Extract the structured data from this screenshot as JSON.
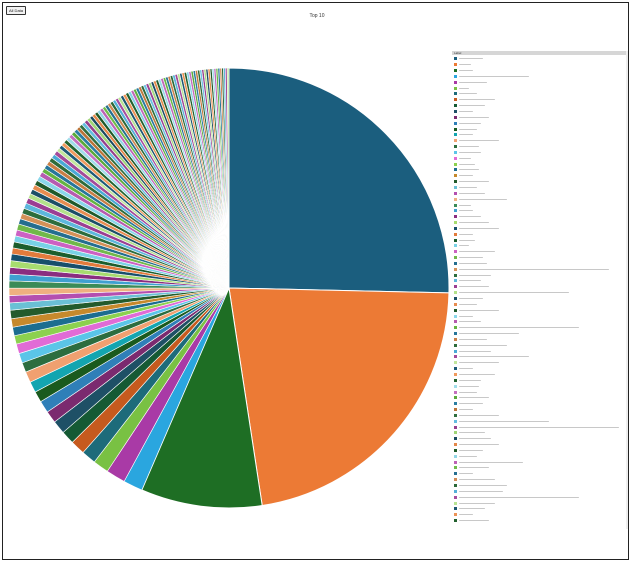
{
  "toolbar": {
    "back_label": "All Data"
  },
  "chart_data": {
    "type": "pie",
    "title": "Top 10",
    "start_angle_deg": 0,
    "direction": "clockwise",
    "legend": {
      "placement": "right",
      "header": "Label"
    },
    "slices": [
      {
        "value": 28.5,
        "color": "#1b5e7e"
      },
      {
        "value": 25.0,
        "color": "#ec7a35"
      },
      {
        "value": 10.0,
        "color": "#1e6e24"
      },
      {
        "value": 1.6,
        "color": "#2aa6df"
      },
      {
        "value": 1.6,
        "color": "#a93aa6"
      },
      {
        "value": 1.3,
        "color": "#79c143"
      },
      {
        "value": 1.2,
        "color": "#1d6b7a"
      },
      {
        "value": 1.2,
        "color": "#c65a1e"
      },
      {
        "value": 1.1,
        "color": "#155a34"
      },
      {
        "value": 1.1,
        "color": "#1e5066"
      },
      {
        "value": 1.0,
        "color": "#7b2a6f"
      },
      {
        "value": 1.0,
        "color": "#2f7fb8"
      },
      {
        "value": 0.9,
        "color": "#1a5a1e"
      },
      {
        "value": 0.9,
        "color": "#13a5b0"
      },
      {
        "value": 0.9,
        "color": "#f0a070"
      },
      {
        "value": 0.8,
        "color": "#2c6d3f"
      },
      {
        "value": 0.8,
        "color": "#5bc5e8"
      },
      {
        "value": 0.8,
        "color": "#e16bd6"
      },
      {
        "value": 0.7,
        "color": "#8cd14f"
      },
      {
        "value": 0.7,
        "color": "#1c6d90"
      },
      {
        "value": 0.7,
        "color": "#c6892c"
      },
      {
        "value": 0.7,
        "color": "#235b2c"
      },
      {
        "value": 0.6,
        "color": "#6ac0d5"
      },
      {
        "value": 0.6,
        "color": "#b44fb0"
      },
      {
        "value": 0.6,
        "color": "#efb080"
      },
      {
        "value": 0.6,
        "color": "#3b8b57"
      },
      {
        "value": 0.55,
        "color": "#3fa0d0"
      },
      {
        "value": 0.55,
        "color": "#8a2d80"
      },
      {
        "value": 0.55,
        "color": "#a7dc6f"
      },
      {
        "value": 0.55,
        "color": "#174f6b"
      },
      {
        "value": 0.5,
        "color": "#e27b3c"
      },
      {
        "value": 0.5,
        "color": "#1c5e2d"
      },
      {
        "value": 0.5,
        "color": "#79d2e6"
      },
      {
        "value": 0.5,
        "color": "#cc61c3"
      },
      {
        "value": 0.5,
        "color": "#70b84a"
      },
      {
        "value": 0.45,
        "color": "#246e8f"
      },
      {
        "value": 0.45,
        "color": "#d49158"
      },
      {
        "value": 0.45,
        "color": "#2d6d3d"
      },
      {
        "value": 0.45,
        "color": "#5db7dc"
      },
      {
        "value": 0.45,
        "color": "#9b3e93"
      },
      {
        "value": 0.4,
        "color": "#b3e18a"
      },
      {
        "value": 0.4,
        "color": "#1b4f66"
      },
      {
        "value": 0.4,
        "color": "#e78c50"
      },
      {
        "value": 0.4,
        "color": "#205a2a"
      },
      {
        "value": 0.4,
        "color": "#8ad7ea"
      },
      {
        "value": 0.4,
        "color": "#b65bb0"
      },
      {
        "value": 0.35,
        "color": "#64b441"
      },
      {
        "value": 0.35,
        "color": "#27769a"
      },
      {
        "value": 0.35,
        "color": "#c97e45"
      },
      {
        "value": 0.35,
        "color": "#2e6b3a"
      },
      {
        "value": 0.35,
        "color": "#4aa9d6"
      },
      {
        "value": 0.35,
        "color": "#a34a9a"
      },
      {
        "value": 0.3,
        "color": "#c2e69c"
      },
      {
        "value": 0.3,
        "color": "#1d5a76"
      },
      {
        "value": 0.3,
        "color": "#f09a5e"
      },
      {
        "value": 0.3,
        "color": "#23632f"
      },
      {
        "value": 0.3,
        "color": "#a0ddea"
      },
      {
        "value": 0.3,
        "color": "#c46fbf"
      },
      {
        "value": 0.3,
        "color": "#5aa93b"
      },
      {
        "value": 0.3,
        "color": "#2a7ea2"
      },
      {
        "value": 0.28,
        "color": "#bb7337"
      },
      {
        "value": 0.28,
        "color": "#306e3e"
      },
      {
        "value": 0.28,
        "color": "#63bde0"
      },
      {
        "value": 0.28,
        "color": "#953f8d"
      },
      {
        "value": 0.28,
        "color": "#9fd576"
      },
      {
        "value": 0.26,
        "color": "#1a4a60"
      },
      {
        "value": 0.26,
        "color": "#e3874a"
      },
      {
        "value": 0.26,
        "color": "#1f5a28"
      },
      {
        "value": 0.26,
        "color": "#92d6e6"
      },
      {
        "value": 0.26,
        "color": "#bd62b6"
      },
      {
        "value": 0.25,
        "color": "#6fbc4a"
      },
      {
        "value": 0.25,
        "color": "#266f91"
      },
      {
        "value": 0.25,
        "color": "#d18a55"
      },
      {
        "value": 0.25,
        "color": "#2b6838"
      },
      {
        "value": 0.25,
        "color": "#55b0d8"
      },
      {
        "value": 0.24,
        "color": "#a64d9e"
      },
      {
        "value": 0.24,
        "color": "#b8e393"
      },
      {
        "value": 0.24,
        "color": "#1d5670"
      },
      {
        "value": 0.24,
        "color": "#ec9357"
      },
      {
        "value": 0.24,
        "color": "#22602e"
      },
      {
        "value": 0.23,
        "color": "#84d3e6"
      },
      {
        "value": 0.23,
        "color": "#c168bb"
      },
      {
        "value": 0.23,
        "color": "#61af40"
      },
      {
        "value": 0.23,
        "color": "#2a7aa0"
      },
      {
        "value": 0.22,
        "color": "#c17a40"
      },
      {
        "value": 0.22,
        "color": "#2f6c3c"
      },
      {
        "value": 0.22,
        "color": "#6cc1e2"
      },
      {
        "value": 0.22,
        "color": "#9a4392"
      },
      {
        "value": 0.22,
        "color": "#a8da80"
      },
      {
        "value": 0.21,
        "color": "#1b4d64"
      },
      {
        "value": 0.21,
        "color": "#e58c4e"
      },
      {
        "value": 0.21,
        "color": "#205c2a"
      },
      {
        "value": 0.21,
        "color": "#9adbe9"
      },
      {
        "value": 0.21,
        "color": "#c069ba"
      },
      {
        "value": 0.2,
        "color": "#68b846"
      },
      {
        "value": 0.2,
        "color": "#287396"
      },
      {
        "value": 0.2,
        "color": "#cd8450"
      },
      {
        "value": 0.2,
        "color": "#2c6a3a"
      },
      {
        "value": 0.2,
        "color": "#5cb4da"
      },
      {
        "value": 0.2,
        "color": "#a04897"
      },
      {
        "value": 0.19,
        "color": "#bbe498"
      },
      {
        "value": 0.19,
        "color": "#1d5872"
      },
      {
        "value": 0.19,
        "color": "#ea9054"
      },
      {
        "value": 0.19,
        "color": "#21602d"
      },
      {
        "value": 0.19,
        "color": "#8ad5e7"
      },
      {
        "value": 0.18,
        "color": "#c36cbd"
      },
      {
        "value": 0.18,
        "color": "#5eab3e"
      },
      {
        "value": 0.18,
        "color": "#2b7ca1"
      },
      {
        "value": 0.18,
        "color": "#c47c43"
      },
      {
        "value": 0.18,
        "color": "#2e6b3b"
      },
      {
        "value": 0.17,
        "color": "#70c3e3"
      },
      {
        "value": 0.17,
        "color": "#974190"
      },
      {
        "value": 0.17,
        "color": "#aedd86"
      },
      {
        "value": 0.17,
        "color": "#1b4b62"
      },
      {
        "value": 0.17,
        "color": "#e88f52"
      },
      {
        "value": 0.16,
        "color": "#1f5b29"
      },
      {
        "value": 0.16,
        "color": "#9ddce9"
      },
      {
        "value": 0.16,
        "color": "#be66b8"
      },
      {
        "value": 0.16,
        "color": "#6bba48"
      },
      {
        "value": 0.16,
        "color": "#297598"
      },
      {
        "value": 0.15,
        "color": "#cf8752"
      },
      {
        "value": 0.15,
        "color": "#2d6939"
      },
      {
        "value": 0.15,
        "color": "#5fb6db"
      },
      {
        "value": 0.15,
        "color": "#a24a99"
      },
      {
        "value": 0.15,
        "color": "#bde59b"
      }
    ]
  }
}
